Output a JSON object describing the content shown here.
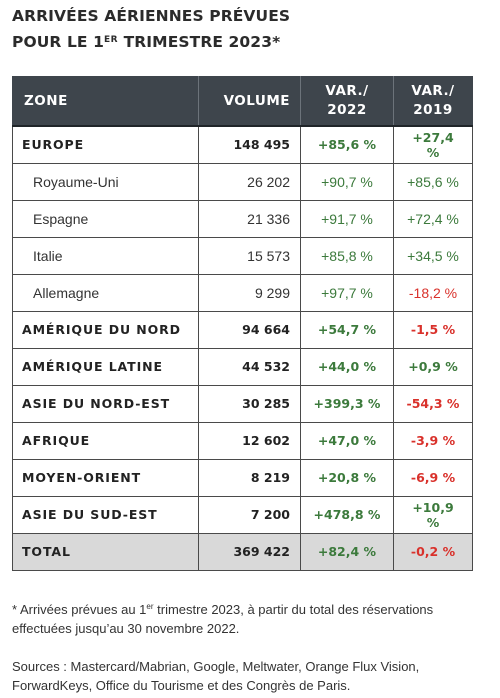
{
  "title": {
    "line1": "ARRIVÉES AÉRIENNES PRÉVUES",
    "line2_prefix": "POUR LE 1",
    "line2_sup": "ER",
    "line2_suffix": " TRIMESTRE 2023*"
  },
  "table": {
    "headers": {
      "zone": "ZONE",
      "volume": "VOLUME",
      "var2022_line1": "VAR./",
      "var2022_line2": "2022",
      "var2019_line1": "VAR./",
      "var2019_line2": "2019"
    },
    "rows": [
      {
        "zone": "EUROPE",
        "volume": "148 495",
        "var2022": "+85,6 %",
        "var2019": "+27,4 %"
      },
      {
        "zone": "Royaume-Uni",
        "volume": "26 202",
        "var2022": "+90,7 %",
        "var2019": "+85,6 %"
      },
      {
        "zone": "Espagne",
        "volume": "21 336",
        "var2022": "+91,7 %",
        "var2019": "+72,4 %"
      },
      {
        "zone": "Italie",
        "volume": "15 573",
        "var2022": "+85,8 %",
        "var2019": "+34,5 %"
      },
      {
        "zone": "Allemagne",
        "volume": "9 299",
        "var2022": "+97,7 %",
        "var2019": "-18,2 %"
      },
      {
        "zone": "AMÉRIQUE DU NORD",
        "volume": "94 664",
        "var2022": "+54,7 %",
        "var2019": "-1,5 %"
      },
      {
        "zone": "AMÉRIQUE LATINE",
        "volume": "44 532",
        "var2022": "+44,0 %",
        "var2019": "+0,9 %"
      },
      {
        "zone": "ASIE DU NORD-EST",
        "volume": "30 285",
        "var2022": "+399,3 %",
        "var2019": "-54,3 %"
      },
      {
        "zone": "AFRIQUE",
        "volume": "12 602",
        "var2022": "+47,0 %",
        "var2019": "-3,9 %"
      },
      {
        "zone": "MOYEN-ORIENT",
        "volume": "8 219",
        "var2022": "+20,8 %",
        "var2019": "-6,9 %"
      },
      {
        "zone": "ASIE DU SUD-EST",
        "volume": "7 200",
        "var2022": "+478,8 %",
        "var2019": "+10,9 %"
      }
    ],
    "total": {
      "zone": "TOTAL",
      "volume": "369 422",
      "var2022": "+82,4 %",
      "var2019": "-0,2 %"
    }
  },
  "note": {
    "prefix": "* Arrivées prévues au 1",
    "sup": "er",
    "suffix": " trimestre 2023, à partir du total des réservations effectuées jusqu’au 30 novembre 2022."
  },
  "sources": "Sources : Mastercard/Mabrian, Google, Meltwater, Orange Flux Vision, ForwardKeys, Office du Tourisme et des Congrès de Paris.",
  "colors": {
    "positive": "#3c7a3c",
    "negative": "#d9312b",
    "header_bg": "#3e454c",
    "total_bg": "#d9d9d9"
  }
}
